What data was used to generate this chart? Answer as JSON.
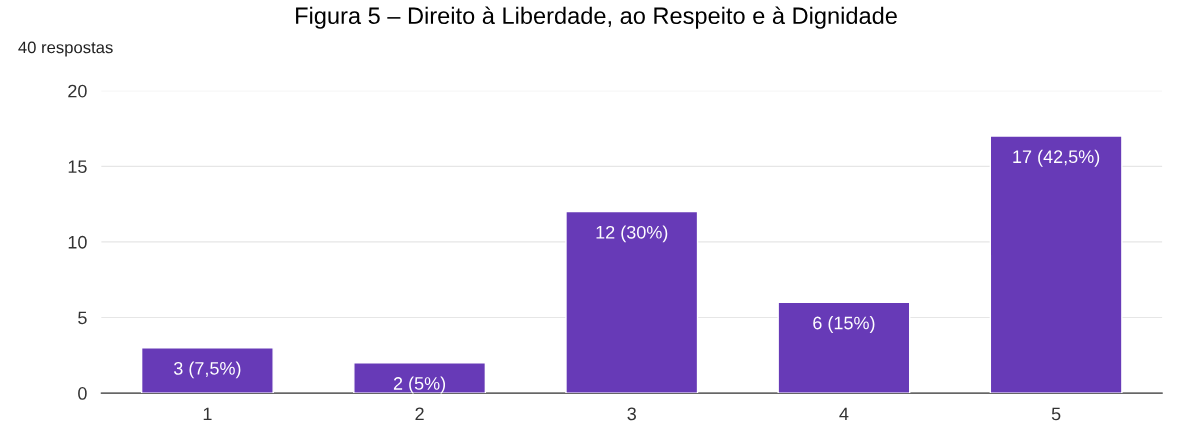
{
  "chart_data": {
    "type": "bar",
    "title": "Figura 5 – Direito à Liberdade, ao Respeito e à Dignidade",
    "subtitle": "40 respostas",
    "categories": [
      "1",
      "2",
      "3",
      "4",
      "5"
    ],
    "values": [
      3,
      2,
      12,
      6,
      17
    ],
    "value_labels": [
      "3 (7,5%)",
      "2 (5%)",
      "12 (30%)",
      "6 (15%)",
      "17 (42,5%)"
    ],
    "color": "#673ab7",
    "ylim": [
      0,
      20
    ],
    "yticks": [
      0,
      5,
      10,
      15,
      20
    ],
    "grid": "y"
  }
}
